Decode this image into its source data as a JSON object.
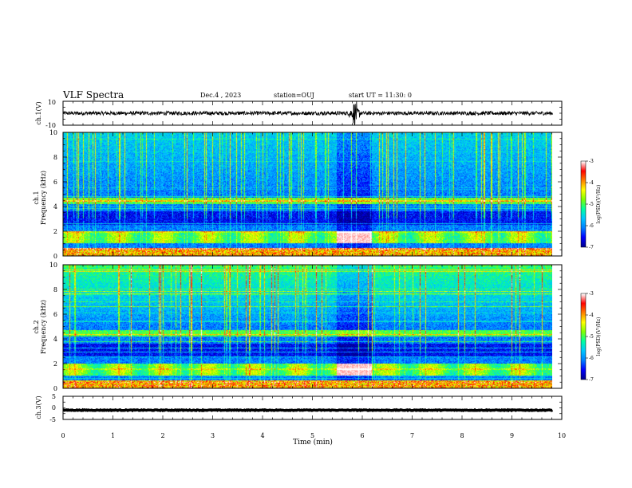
{
  "header": {
    "title": "VLF Spectra",
    "date": "Dec.4 , 2023",
    "station": "station=OUJ",
    "start": "start UT = 11:30: 0"
  },
  "chart_data": [
    {
      "type": "line",
      "panel": "ch1-waveform",
      "ylabel": "ch.1(V)",
      "ylim": [
        -10,
        10
      ],
      "yticks": [
        "10",
        "-10"
      ],
      "xlim": [
        0,
        9.83
      ],
      "series": [
        {
          "values_summary": "noise centred near 0 V, amplitude about ±2 V, spike near t=5.85 min"
        }
      ]
    },
    {
      "type": "heatmap",
      "panel": "ch1-spectrogram",
      "ylabel": "ch.1 Frequency (kHz)",
      "ylim": [
        0,
        10
      ],
      "yticks": [
        "0",
        "2",
        "4",
        "6",
        "8",
        "10"
      ],
      "xlim": [
        0,
        9.83
      ],
      "colorbar": {
        "label": "log(PSD)(V²/Hz)",
        "range": [
          -7,
          -3
        ],
        "ticks": [
          "-3",
          "-4",
          "-5",
          "-6",
          "-7"
        ]
      },
      "features": {
        "band_lower_khz": [
          1.0,
          2.0
        ],
        "band_mid_khz": [
          4.2,
          4.7
        ],
        "gap_min": [
          5.5,
          6.2
        ]
      }
    },
    {
      "type": "heatmap",
      "panel": "ch2-spectrogram",
      "ylabel": "ch.2 Frequency (kHz)",
      "ylim": [
        0,
        10
      ],
      "yticks": [
        "0",
        "2",
        "4",
        "6",
        "8",
        "10"
      ],
      "xlim": [
        0,
        9.83
      ],
      "colorbar": {
        "label": "log(PSD)(V²/Hz)",
        "range": [
          -7,
          -3
        ],
        "ticks": [
          "-3",
          "-4",
          "-5",
          "-6",
          "-7"
        ]
      },
      "features": {
        "band_lower_khz": [
          1.0,
          2.0
        ],
        "band_mid_khz": [
          4.2,
          4.7
        ],
        "gap_min": [
          5.5,
          6.2
        ]
      }
    },
    {
      "type": "line",
      "panel": "ch3-waveform",
      "ylabel": "ch.3(V)",
      "ylim": [
        -5,
        5
      ],
      "yticks": [
        "5",
        "0",
        "-5"
      ],
      "xlim": [
        0,
        9.83
      ],
      "series": [
        {
          "values_summary": "flat, about -1 V"
        }
      ]
    }
  ],
  "x_axis": {
    "label": "Time (min)",
    "range": [
      0,
      10
    ],
    "ticks": [
      "0",
      "1",
      "2",
      "3",
      "4",
      "5",
      "6",
      "7",
      "8",
      "9",
      "10"
    ]
  },
  "colors": {
    "colormap": [
      "#000090",
      "#0000ff",
      "#0080ff",
      "#00c8ff",
      "#00ffa0",
      "#80ff00",
      "#ffff00",
      "#ff8000",
      "#ff0000",
      "#ffffff"
    ],
    "trace": "#000000",
    "background": "#ffffff"
  }
}
